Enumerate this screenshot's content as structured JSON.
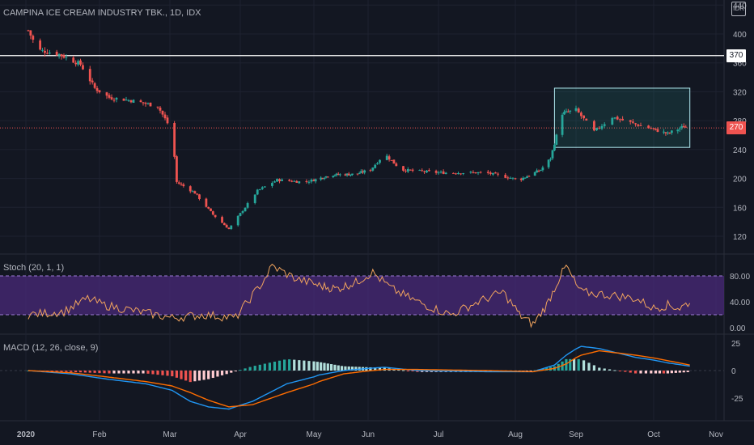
{
  "header": {
    "symbol_title": "CAMPINA ICE CREAM INDUSTRY TBK., 1D, IDX",
    "currency_badge": "IDR"
  },
  "price_tags": {
    "resistance": "370",
    "last": "270"
  },
  "panels": {
    "stoch_title": "Stoch (20, 1, 1)",
    "macd_title": "MACD (12, 26, close, 9)"
  },
  "colors": {
    "background": "#131722",
    "up": "#26a69a",
    "down": "#ef5350",
    "stoch_line": "#f0a35e",
    "stoch_band": "#4a2a7a",
    "macd_line": "#2196f3",
    "signal_line": "#ff6d00",
    "box_border": "#b2ebf2",
    "grid": "#1e2230"
  },
  "chart_data": [
    {
      "type": "candlestick",
      "title": "CAMPINA ICE CREAM INDUSTRY TBK., 1D, IDX",
      "yaxis": {
        "ticks": [
          120,
          160,
          200,
          240,
          280,
          320,
          360,
          400,
          440
        ],
        "range": [
          96,
          443
        ]
      },
      "xaxis": {
        "ticks": [
          "2020",
          "Feb",
          "Mar",
          "Apr",
          "May",
          "Jun",
          "Jul",
          "Aug",
          "Sep",
          "Oct",
          "Nov"
        ]
      },
      "horizontal_line": 370,
      "last_price": 270,
      "consolidation_box": {
        "x_start": "Aug 21",
        "x_end": "Oct 19",
        "y_low": 243,
        "y_high": 325
      },
      "close_path": [
        [
          "Jan 2",
          405
        ],
        [
          "Jan 6",
          378
        ],
        [
          "Jan 15",
          372
        ],
        [
          "Jan 24",
          358
        ],
        [
          "Jan 30",
          325
        ],
        [
          "Feb 5",
          312
        ],
        [
          "Feb 14",
          308
        ],
        [
          "Feb 25",
          300
        ],
        [
          "Mar 2",
          265
        ],
        [
          "Mar 4",
          195
        ],
        [
          "Mar 12",
          180
        ],
        [
          "Mar 20",
          150
        ],
        [
          "Mar 27",
          130
        ],
        [
          "Apr 3",
          160
        ],
        [
          "Apr 8",
          183
        ],
        [
          "Apr 16",
          198
        ],
        [
          "Apr 27",
          195
        ],
        [
          "May 11",
          205
        ],
        [
          "May 25",
          206
        ],
        [
          "Jun 2",
          212
        ],
        [
          "Jun 8",
          234
        ],
        [
          "Jun 15",
          212
        ],
        [
          "Jul 1",
          208
        ],
        [
          "Jul 20",
          208
        ],
        [
          "Aug 3",
          198
        ],
        [
          "Aug 14",
          212
        ],
        [
          "Aug 19",
          228
        ],
        [
          "Aug 25",
          290
        ],
        [
          "Sep 1",
          295
        ],
        [
          "Sep 8",
          265
        ],
        [
          "Sep 15",
          285
        ],
        [
          "Sep 24",
          275
        ],
        [
          "Oct 1",
          268
        ],
        [
          "Oct 8",
          262
        ],
        [
          "Oct 16",
          272
        ],
        [
          "Oct 19",
          270
        ]
      ]
    },
    {
      "type": "line",
      "title": "Stoch (20, 1, 1)",
      "yaxis": {
        "ticks": [
          0,
          40,
          80
        ],
        "range": [
          -10,
          110
        ]
      },
      "band": [
        20,
        80
      ],
      "series": [
        {
          "values_path": [
            [
              "Jan 2",
              20
            ],
            [
              "Jan 17",
              25
            ],
            [
              "Jan 27",
              45
            ],
            [
              "Feb 3",
              35
            ],
            [
              "Feb 17",
              25
            ],
            [
              "Mar 2",
              15
            ],
            [
              "Mar 16",
              20
            ],
            [
              "Mar 30",
              15
            ],
            [
              "Apr 10",
              70
            ],
            [
              "Apr 14",
              95
            ],
            [
              "Apr 24",
              75
            ],
            [
              "May 4",
              65
            ],
            [
              "May 14",
              60
            ],
            [
              "May 25",
              70
            ],
            [
              "Jun 3",
              85
            ],
            [
              "Jun 11",
              60
            ],
            [
              "Jun 22",
              40
            ],
            [
              "Jul 6",
              20
            ],
            [
              "Jul 17",
              40
            ],
            [
              "Jul 27",
              55
            ],
            [
              "Aug 3",
              20
            ],
            [
              "Aug 10",
              5
            ],
            [
              "Aug 17",
              35
            ],
            [
              "Aug 24",
              80
            ],
            [
              "Aug 27",
              95
            ],
            [
              "Sep 3",
              55
            ],
            [
              "Sep 15",
              50
            ],
            [
              "Sep 24",
              45
            ],
            [
              "Oct 1",
              30
            ],
            [
              "Oct 8",
              35
            ],
            [
              "Oct 14",
              30
            ],
            [
              "Oct 19",
              40
            ]
          ]
        }
      ]
    },
    {
      "type": "line",
      "title": "MACD (12, 26, close, 9)",
      "yaxis": {
        "ticks": [
          -25,
          0,
          25
        ],
        "range": [
          -42,
          27
        ]
      },
      "series": [
        {
          "values_path": [
            [
              "Jan 2",
              0
            ],
            [
              "Jan 20",
              -3
            ],
            [
              "Feb 5",
              -8
            ],
            [
              "Feb 20",
              -12
            ],
            [
              "Mar 2",
              -18
            ],
            [
              "Mar 10",
              -28
            ],
            [
              "Mar 18",
              -33
            ],
            [
              "Mar 27",
              -35
            ],
            [
              "Apr 6",
              -28
            ],
            [
              "Apr 20",
              -12
            ],
            [
              "May 4",
              -4
            ],
            [
              "May 18",
              0
            ],
            [
              "Jun 8",
              3
            ],
            [
              "Jun 22",
              0
            ],
            [
              "Jul 20",
              -1
            ],
            [
              "Aug 10",
              -1
            ],
            [
              "Aug 21",
              5
            ],
            [
              "Aug 27",
              14
            ],
            [
              "Sep 3",
              22
            ],
            [
              "Sep 10",
              20
            ],
            [
              "Sep 24",
              12
            ],
            [
              "Oct 8",
              7
            ],
            [
              "Oct 19",
              4
            ]
          ]
        },
        {
          "values_path": [
            [
              "Jan 2",
              0
            ],
            [
              "Jan 20",
              -2
            ],
            [
              "Feb 5",
              -6
            ],
            [
              "Feb 20",
              -10
            ],
            [
              "Mar 2",
              -14
            ],
            [
              "Mar 10",
              -20
            ],
            [
              "Mar 18",
              -27
            ],
            [
              "Mar 27",
              -33
            ],
            [
              "Apr 6",
              -31
            ],
            [
              "Apr 20",
              -20
            ],
            [
              "May 4",
              -10
            ],
            [
              "May 18",
              -3
            ],
            [
              "Jun 8",
              1
            ],
            [
              "Jun 22",
              1
            ],
            [
              "Jul 20",
              0
            ],
            [
              "Aug 10",
              -1
            ],
            [
              "Aug 21",
              2
            ],
            [
              "Aug 27",
              6
            ],
            [
              "Sep 3",
              14
            ],
            [
              "Sep 10",
              18
            ],
            [
              "Sep 24",
              14
            ],
            [
              "Oct 8",
              9
            ],
            [
              "Oct 19",
              5
            ]
          ]
        }
      ]
    }
  ]
}
